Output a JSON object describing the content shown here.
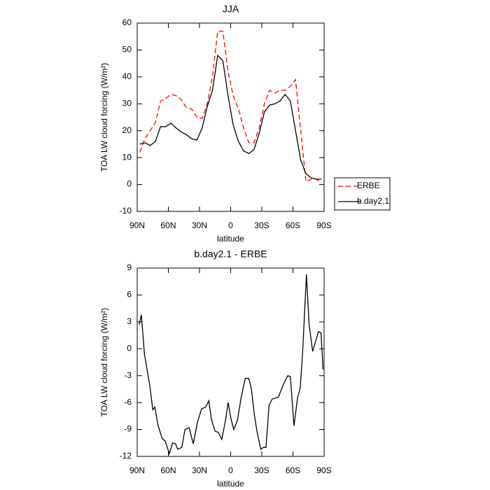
{
  "chart_data": [
    {
      "type": "line",
      "title": "JJA",
      "ylabel": "TOA LW cloud forcing (W/m²)",
      "xlabel": "latitude",
      "xlim": [
        90,
        -90
      ],
      "xticks": [
        {
          "value": 90,
          "label": "90N"
        },
        {
          "value": 60,
          "label": "60N"
        },
        {
          "value": 30,
          "label": "30N"
        },
        0,
        {
          "value": -30,
          "label": "30S"
        },
        {
          "value": -60,
          "label": "60S"
        },
        {
          "value": -90,
          "label": "90S"
        }
      ],
      "ylim": [
        -10,
        60
      ],
      "yticks": [
        -10,
        0,
        10,
        20,
        30,
        40,
        50,
        60
      ],
      "legend": "right",
      "x": [
        87.5,
        82.5,
        77.5,
        72.5,
        67.5,
        62.5,
        57.5,
        52.5,
        47.5,
        42.5,
        37.5,
        32.5,
        27.5,
        22.5,
        17.5,
        12.5,
        7.5,
        2.5,
        -2.5,
        -7.5,
        -12.5,
        -17.5,
        -22.5,
        -27.5,
        -32.5,
        -37.5,
        -42.5,
        -47.5,
        -52.5,
        -57.5,
        -62.5,
        -67.5,
        -72.5,
        -77.5,
        -82.5,
        -87.5
      ],
      "series": [
        {
          "name": "ERBE",
          "color": "#ff0000",
          "dashed": true,
          "values": [
            12,
            17,
            20,
            23,
            31,
            32,
            33.5,
            33,
            31.5,
            28.5,
            28,
            25,
            24.5,
            30,
            40,
            57,
            57,
            42,
            33,
            28,
            21,
            15.5,
            15.5,
            21,
            30,
            35,
            34,
            35,
            35,
            36.5,
            39,
            20,
            1,
            2,
            2,
            0.5
          ]
        },
        {
          "name": "b.day2.1",
          "color": "#000000",
          "dashed": false,
          "values": [
            15,
            15.5,
            14.5,
            16,
            21.5,
            21.5,
            22.8,
            21,
            19.5,
            18.5,
            17,
            16.5,
            21,
            29,
            35,
            48,
            46,
            33,
            22,
            16,
            12.5,
            11.5,
            13,
            19,
            27,
            29.5,
            30,
            31,
            33.5,
            31,
            20,
            9,
            4,
            2.5,
            2,
            2
          ]
        }
      ]
    },
    {
      "type": "line",
      "title": "b.day2.1 - ERBE",
      "ylabel": "TOA LW cloud forcing (W/m²)",
      "xlabel": "latitude",
      "xlim": [
        90,
        -90
      ],
      "xticks": [
        {
          "value": 90,
          "label": "90N"
        },
        {
          "value": 60,
          "label": "60N"
        },
        {
          "value": 30,
          "label": "30N"
        },
        0,
        {
          "value": -30,
          "label": "30S"
        },
        {
          "value": -60,
          "label": "60S"
        },
        {
          "value": -90,
          "label": "90S"
        }
      ],
      "ylim": [
        -12,
        9
      ],
      "yticks": [
        -12,
        -9,
        -6,
        -3,
        0,
        3,
        6,
        9
      ],
      "color": "#000000",
      "x": [
        88,
        86,
        83,
        78,
        75,
        73,
        70,
        66,
        63,
        59,
        56,
        53,
        51,
        47,
        44,
        40,
        36,
        32,
        28,
        24,
        21,
        18.5,
        15,
        12,
        8.5,
        5,
        2.4,
        -0.3,
        -3,
        -6.5,
        -10,
        -14,
        -17.5,
        -20,
        -23,
        -25.5,
        -29,
        -31.5,
        -34,
        -37,
        -40,
        -46,
        -51,
        -55,
        -57.5,
        -61,
        -64.5,
        -67,
        -69.5,
        -73,
        -75.5,
        -79,
        -84.5,
        -87,
        -89
      ],
      "values": [
        2.7,
        3.8,
        -0.6,
        -4,
        -6.8,
        -6.5,
        -8.5,
        -10,
        -10.3,
        -11.7,
        -10.5,
        -10.6,
        -11.2,
        -11,
        -9,
        -8.8,
        -10.6,
        -8.2,
        -6.7,
        -6.5,
        -5.8,
        -7.9,
        -9.2,
        -9.3,
        -10.1,
        -8,
        -6,
        -7.8,
        -9,
        -8,
        -5.5,
        -3.3,
        -3.3,
        -4.5,
        -7.5,
        -9.3,
        -11.2,
        -11,
        -11,
        -6.3,
        -5.6,
        -5.4,
        -3.9,
        -3,
        -3.1,
        -8.6,
        -5.4,
        -4.4,
        0,
        8.3,
        2.8,
        -0.3,
        1.9,
        1.8,
        -2.3
      ]
    }
  ]
}
